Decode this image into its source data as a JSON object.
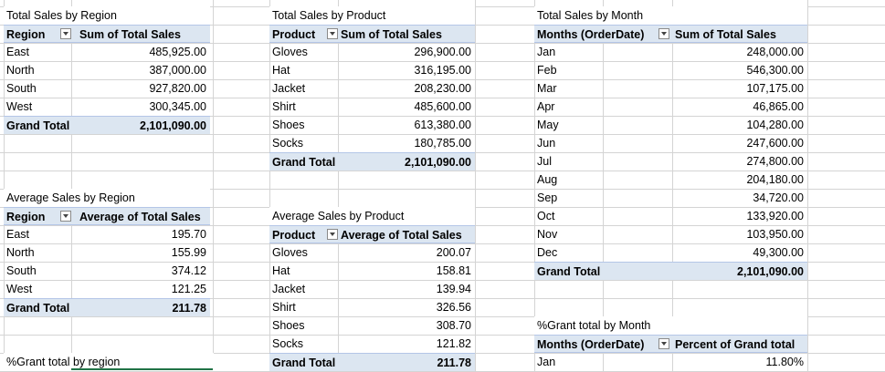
{
  "region_sum": {
    "title": "Total Sales by Region",
    "header": [
      "Region",
      "Sum of Total Sales"
    ],
    "rows": [
      [
        "East",
        "485,925.00"
      ],
      [
        "North",
        "387,000.00"
      ],
      [
        "South",
        "927,820.00"
      ],
      [
        "West",
        "300,345.00"
      ]
    ],
    "total": [
      "Grand Total",
      "2,101,090.00"
    ]
  },
  "region_avg": {
    "title": "Average Sales by Region",
    "header": [
      "Region",
      "Average of Total Sales"
    ],
    "rows": [
      [
        "East",
        "195.70"
      ],
      [
        "North",
        "155.99"
      ],
      [
        "South",
        "374.12"
      ],
      [
        "West",
        "121.25"
      ]
    ],
    "total": [
      "Grand Total",
      "211.78"
    ]
  },
  "region_pct": {
    "title": "%Grant total by region"
  },
  "product_sum": {
    "title": "Total Sales by Product",
    "header": [
      "Product",
      "Sum of Total Sales"
    ],
    "rows": [
      [
        "Gloves",
        "296,900.00"
      ],
      [
        "Hat",
        "316,195.00"
      ],
      [
        "Jacket",
        "208,230.00"
      ],
      [
        "Shirt",
        "485,600.00"
      ],
      [
        "Shoes",
        "613,380.00"
      ],
      [
        "Socks",
        "180,785.00"
      ]
    ],
    "total": [
      "Grand Total",
      "2,101,090.00"
    ]
  },
  "product_avg": {
    "title": "Average Sales by Product",
    "header": [
      "Product",
      "Average of Total Sales"
    ],
    "rows": [
      [
        "Gloves",
        "200.07"
      ],
      [
        "Hat",
        "158.81"
      ],
      [
        "Jacket",
        "139.94"
      ],
      [
        "Shirt",
        "326.56"
      ],
      [
        "Shoes",
        "308.70"
      ],
      [
        "Socks",
        "121.82"
      ]
    ],
    "total": [
      "Grand Total",
      "211.78"
    ]
  },
  "month_sum": {
    "title": "Total Sales by Month",
    "header": [
      "Months (OrderDate)",
      "Sum of Total Sales"
    ],
    "rows": [
      [
        "Jan",
        "248,000.00"
      ],
      [
        "Feb",
        "546,300.00"
      ],
      [
        "Mar",
        "107,175.00"
      ],
      [
        "Apr",
        "46,865.00"
      ],
      [
        "May",
        "104,280.00"
      ],
      [
        "Jun",
        "247,600.00"
      ],
      [
        "Jul",
        "274,800.00"
      ],
      [
        "Aug",
        "204,180.00"
      ],
      [
        "Sep",
        "34,720.00"
      ],
      [
        "Oct",
        "133,920.00"
      ],
      [
        "Nov",
        "103,950.00"
      ],
      [
        "Dec",
        "49,300.00"
      ]
    ],
    "total": [
      "Grand Total",
      "2,101,090.00"
    ]
  },
  "month_pct": {
    "title": "%Grant total by Month",
    "header": [
      "Months (OrderDate)",
      "Percent of Grand total"
    ],
    "rows": [
      [
        "Jan",
        "11.80%"
      ]
    ]
  },
  "icons": {
    "filter_dropdown": "filter-dropdown-icon"
  },
  "colors": {
    "pivot_header_bg": "#dce6f1",
    "grid_line": "#d4d4d4",
    "selection": "#217346"
  }
}
